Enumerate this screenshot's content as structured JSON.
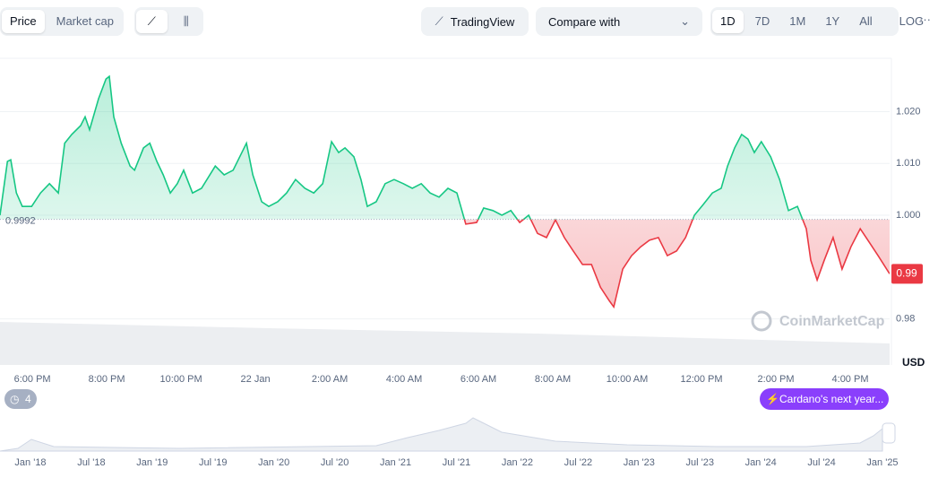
{
  "toolbar": {
    "tabs": [
      "Price",
      "Market cap"
    ],
    "tradingview": "TradingView",
    "compare": "Compare with",
    "ranges": [
      "1D",
      "7D",
      "1M",
      "1Y",
      "All"
    ],
    "log": "LOG",
    "more": "···"
  },
  "chart_data": {
    "type": "line",
    "series": [
      {
        "color": "#16c784",
        "down_color": "#ea3943",
        "x": [
          -0.87,
          -0.67,
          -0.58,
          -0.43,
          -0.27,
          -0.02,
          0.22,
          0.46,
          0.7,
          0.87,
          1.06,
          1.3,
          1.42,
          1.54,
          1.78,
          1.98,
          2.07,
          2.19,
          2.39,
          2.63,
          2.75,
          2.99,
          3.16,
          3.35,
          3.52,
          3.71,
          3.9,
          4.07,
          4.31,
          4.55,
          4.92,
          5.16,
          5.4,
          5.76,
          5.93,
          6.17,
          6.36,
          6.6,
          6.84,
          7.08,
          7.33,
          7.57,
          7.81,
          8.05,
          8.24,
          8.41,
          8.65,
          8.84,
          9.01,
          9.25,
          9.49,
          9.73,
          9.98,
          10.22,
          10.46,
          10.7,
          10.94,
          11.18,
          11.42,
          11.66,
          11.95,
          12.14,
          12.39,
          12.63,
          12.87,
          13.11,
          13.35,
          13.59,
          13.83,
          14.07,
          14.31,
          14.55,
          14.8,
          15.04,
          15.28,
          15.52,
          15.64,
          15.88,
          16.12,
          16.36,
          16.6,
          16.84,
          17.08,
          17.33,
          17.57,
          17.81,
          18.05,
          18.29,
          18.53,
          18.7,
          18.89,
          19.08,
          19.25,
          19.42,
          19.61,
          19.86,
          20.1,
          20.34,
          20.58,
          20.82,
          20.94,
          21.11,
          21.3,
          21.54,
          21.78,
          22.02,
          22.27,
          22.51,
          22.75,
          23.06
        ],
        "values": [
          1.0,
          1.0104,
          1.0107,
          1.0043,
          1.0017,
          1.0017,
          1.0043,
          1.0061,
          1.0043,
          1.0139,
          1.0156,
          1.0173,
          1.019,
          1.0165,
          1.0225,
          1.0263,
          1.0268,
          1.019,
          1.0139,
          1.0095,
          1.0087,
          1.013,
          1.0139,
          1.0104,
          1.0078,
          1.0043,
          1.0061,
          1.0087,
          1.0043,
          1.0052,
          1.0095,
          1.0078,
          1.0087,
          1.0139,
          1.0078,
          1.0026,
          1.0017,
          1.0026,
          1.0043,
          1.0069,
          1.0052,
          1.0043,
          1.0061,
          1.0142,
          1.0121,
          1.013,
          1.0113,
          1.0069,
          1.0017,
          1.0026,
          1.0061,
          1.0069,
          1.0061,
          1.0052,
          1.0061,
          1.0043,
          1.0035,
          1.0052,
          1.0043,
          0.9983,
          0.9986,
          1.0014,
          1.0009,
          1.0,
          1.0009,
          0.9986,
          1.0,
          0.9965,
          0.9957,
          0.9991,
          0.9957,
          0.9931,
          0.9905,
          0.9905,
          0.9861,
          0.9835,
          0.9823,
          0.9896,
          0.9922,
          0.9939,
          0.9952,
          0.9957,
          0.9922,
          0.9931,
          0.9957,
          1.0,
          1.0021,
          1.0043,
          1.0052,
          1.0095,
          1.013,
          1.0156,
          1.0147,
          1.0121,
          1.0142,
          1.0113,
          1.0069,
          1.0009,
          1.0017,
          0.9974,
          0.9913,
          0.9875,
          0.9913,
          0.9957,
          0.9896,
          0.9939,
          0.9974,
          0.9948,
          0.9922,
          0.9887
        ]
      }
    ],
    "reference": 0.9992,
    "last_price_label": "0.99",
    "xlim": [
      -0.87,
      23.06
    ],
    "ylim": [
      0.9711,
      1.0303
    ],
    "yticks": [
      {
        "value": 1.02,
        "label": "1.020"
      },
      {
        "value": 1.01,
        "label": "1.010"
      },
      {
        "value": 1,
        "label": "1.000"
      },
      0.98
    ],
    "xticks": [
      {
        "value": 0,
        "label": "6:00 PM"
      },
      {
        "value": 2,
        "label": "8:00 PM"
      },
      {
        "value": 4,
        "label": "10:00 PM"
      },
      {
        "value": 6,
        "label": "22 Jan"
      },
      {
        "value": 8,
        "label": "2:00 AM"
      },
      {
        "value": 10,
        "label": "4:00 AM"
      },
      {
        "value": 12,
        "label": "6:00 AM"
      },
      {
        "value": 14,
        "label": "8:00 AM"
      },
      {
        "value": 16,
        "label": "10:00 AM"
      },
      {
        "value": 18,
        "label": "12:00 PM"
      },
      {
        "value": 20,
        "label": "2:00 PM"
      },
      {
        "value": 22,
        "label": "4:00 PM"
      }
    ],
    "grid": true,
    "unit": "USD",
    "watermark": "CoinMarketCap"
  },
  "events": {
    "count": "4",
    "news": "Cardano's next year..."
  },
  "navigator": {
    "labels": [
      "Jan '18",
      "Jul '18",
      "Jan '19",
      "Jul '19",
      "Jan '20",
      "Jul '20",
      "Jan '21",
      "Jul '21",
      "Jan '22",
      "Jul '22",
      "Jan '23",
      "Jul '23",
      "Jan '24",
      "Jul '24",
      "Jan '25"
    ]
  }
}
